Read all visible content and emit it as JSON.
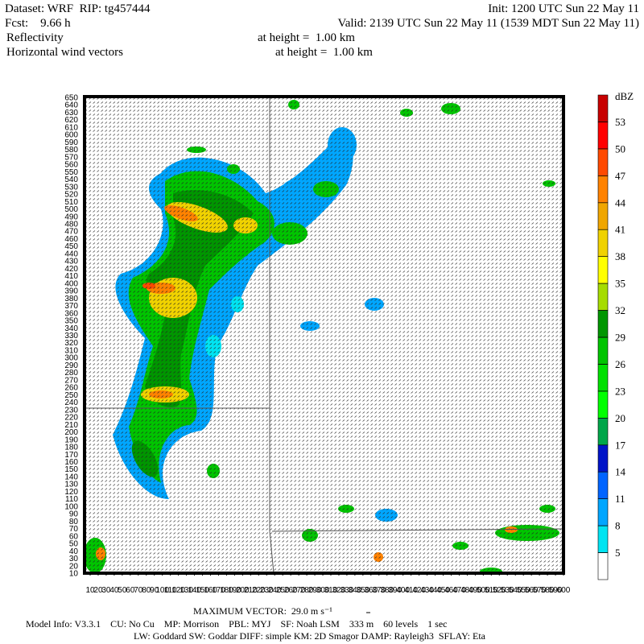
{
  "header": {
    "dataset": "Dataset: WRF  RIP: tg457444",
    "init": "Init: 1200 UTC Sun 22 May 11",
    "fcst": "Fcst:    9.66 h",
    "valid": "Valid: 2139 UTC Sun 22 May 11 (1539 MDT Sun 22 May 11)",
    "field_1": "Reflectivity",
    "field_1_level": "at height =  1.00 km",
    "field_2": "Horizontal wind vectors",
    "field_2_level": "at height =  1.00 km"
  },
  "plot": {
    "yticks": [
      10,
      20,
      30,
      40,
      50,
      60,
      70,
      80,
      90,
      100,
      110,
      120,
      130,
      140,
      150,
      160,
      170,
      180,
      190,
      200,
      210,
      220,
      230,
      240,
      250,
      260,
      270,
      280,
      290,
      300,
      310,
      320,
      330,
      340,
      350,
      360,
      370,
      380,
      390,
      400,
      410,
      420,
      430,
      440,
      450,
      460,
      470,
      480,
      490,
      500,
      510,
      520,
      530,
      540,
      550,
      560,
      570,
      580,
      590,
      600,
      610,
      620,
      630,
      640,
      650
    ],
    "xticks": [
      10,
      20,
      30,
      40,
      50,
      60,
      70,
      80,
      90,
      100,
      110,
      120,
      130,
      140,
      150,
      160,
      170,
      180,
      190,
      200,
      210,
      220,
      230,
      240,
      250,
      260,
      270,
      280,
      290,
      300,
      310,
      320,
      330,
      340,
      350,
      360,
      370,
      380,
      390,
      400,
      410,
      420,
      430,
      440,
      450,
      460,
      470,
      480,
      490,
      500,
      510,
      520,
      530,
      540,
      550,
      560,
      570,
      580,
      590,
      600
    ]
  },
  "colorbar": {
    "unit": "dBZ",
    "levels": [
      5,
      8,
      11,
      14,
      17,
      20,
      23,
      26,
      29,
      32,
      35,
      38,
      41,
      44,
      47,
      50,
      53
    ],
    "colors": [
      "#ffffff",
      "#00e4f2",
      "#00a6ff",
      "#0064ff",
      "#0014c8",
      "#00a64a",
      "#00ff00",
      "#00e000",
      "#00c400",
      "#009600",
      "#a6dc00",
      "#ffff00",
      "#f0d200",
      "#f0a600",
      "#ff8200",
      "#ff4a00",
      "#ff0000",
      "#c80000"
    ]
  },
  "footer": {
    "max_vector": "MAXIMUM VECTOR:  29.0 m s⁻¹",
    "model_info": "Model Info: V3.3.1    CU: No Cu    MP: Morrison    PBL: MYJ    SF: Noah LSM    333 m    60 levels    1 sec",
    "model_info_2": "LW: Goddard SW: Goddar DIFF: simple KM: 2D Smagor DAMP: Rayleigh3  SFLAY: Eta"
  }
}
